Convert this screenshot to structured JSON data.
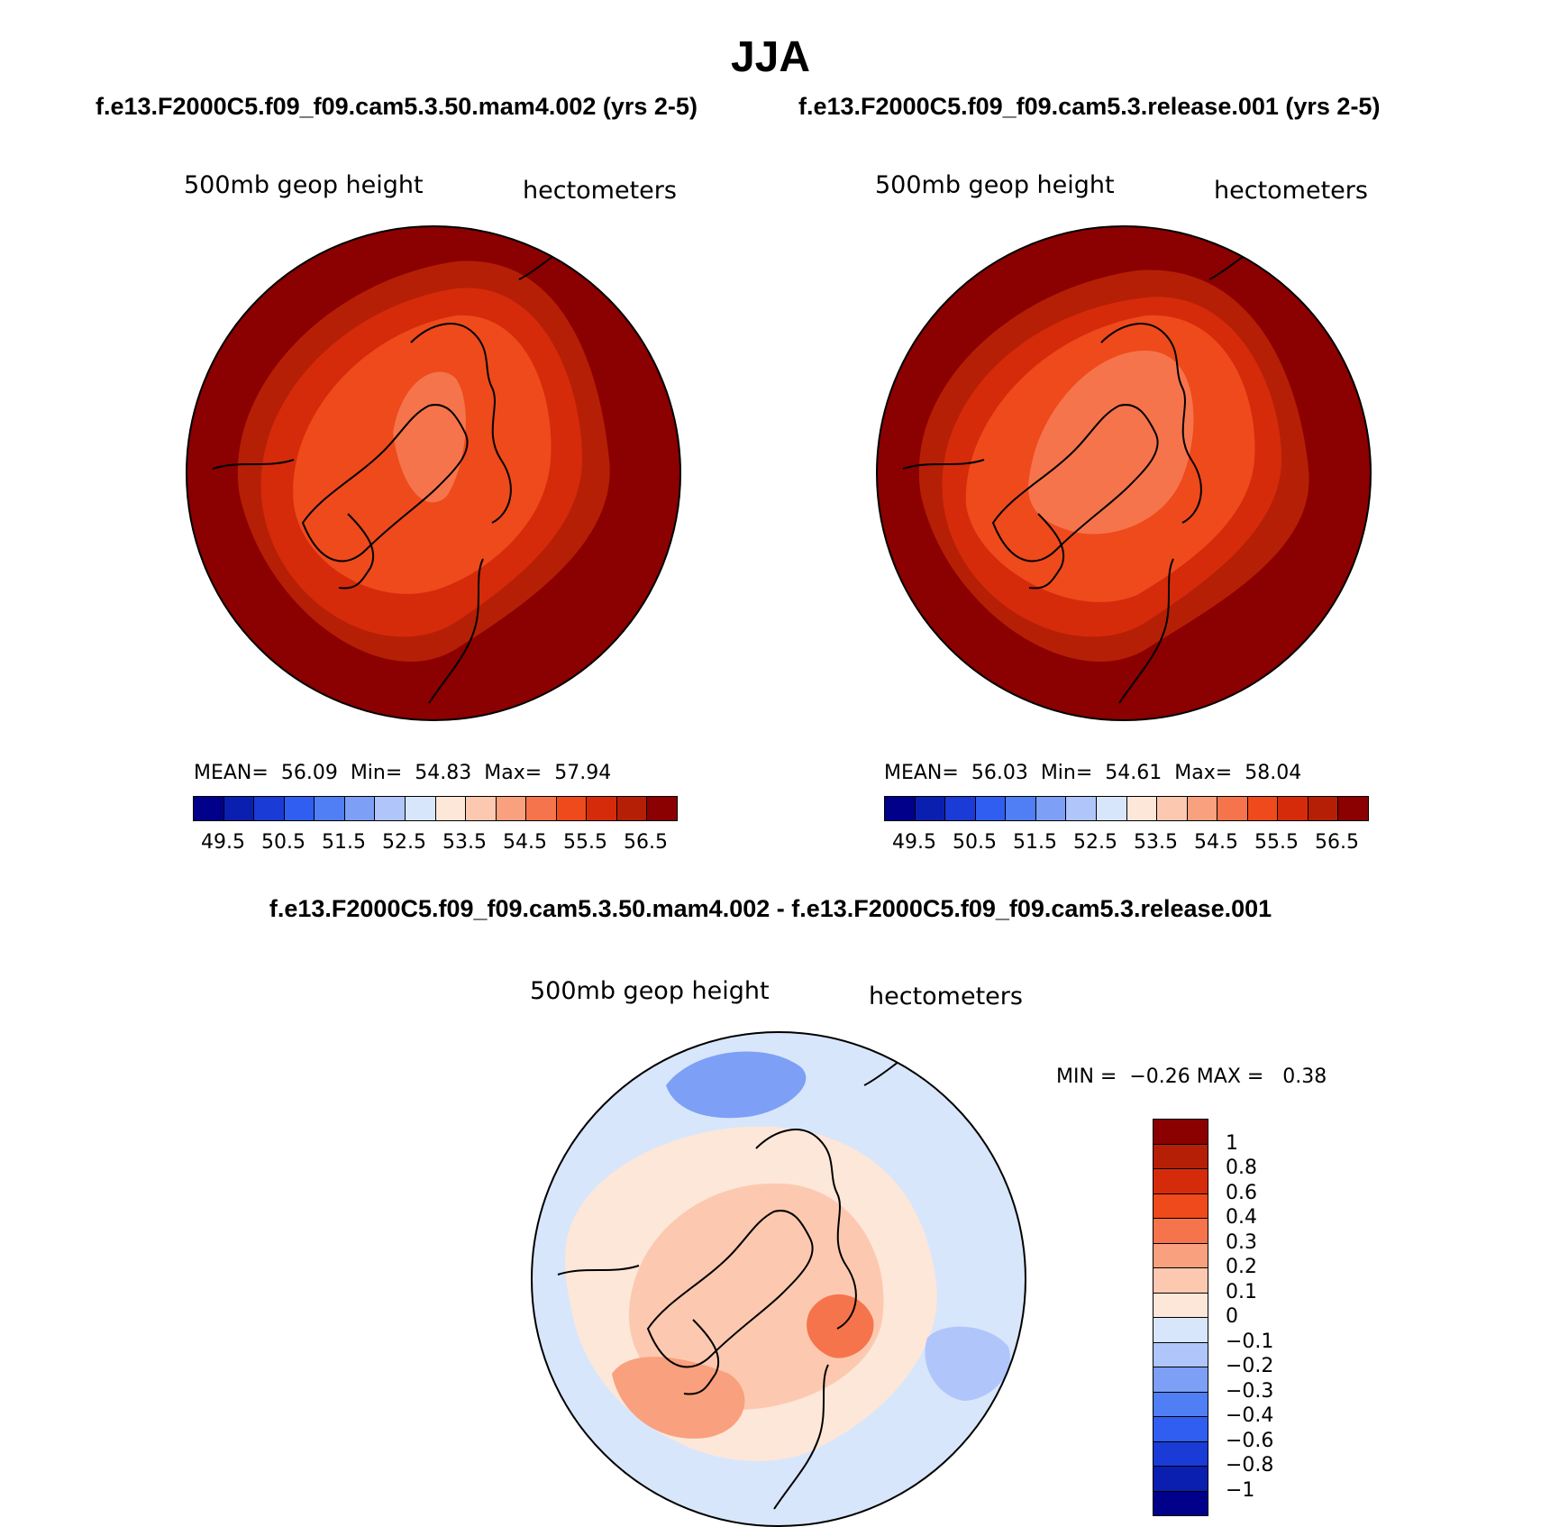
{
  "season": "JJA",
  "panels": [
    {
      "run_title": "f.e13.F2000C5.f09_f09.cam5.3.50.mam4.002 (yrs 2-5)",
      "variable": "500mb geop height",
      "units": "hectometers",
      "stats": {
        "mean_label": "MEAN=",
        "mean": "56.09",
        "min_label": "Min=",
        "min": "54.83",
        "max_label": "Max=",
        "max": "57.94"
      },
      "field_levels": {
        "outer": 56.5,
        "ring1": 56.0,
        "ring2": 55.5,
        "ring3": 55.0,
        "core": 54.5
      }
    },
    {
      "run_title": "f.e13.F2000C5.f09_f09.cam5.3.release.001 (yrs 2-5)",
      "variable": "500mb geop height",
      "units": "hectometers",
      "stats": {
        "mean_label": "MEAN=",
        "mean": "56.03",
        "min_label": "Min=",
        "min": "54.61",
        "max_label": "Max=",
        "max": "58.04"
      },
      "field_levels": {
        "outer": 56.5,
        "ring1": 56.0,
        "ring2": 55.5,
        "ring3": 55.0,
        "core": 54.5
      }
    }
  ],
  "abs_colorbar": {
    "colors": [
      "#00008b",
      "#0a1fb0",
      "#1a3bd6",
      "#2f5ef0",
      "#4f7ef5",
      "#7d9ff6",
      "#b0c6fb",
      "#d8e6fb",
      "#fde7d9",
      "#fcc9b0",
      "#f9a07e",
      "#f6744c",
      "#ee4a1c",
      "#d52b0a",
      "#b51f05",
      "#8b0000"
    ],
    "tick_labels": [
      "49.5",
      "50.5",
      "51.5",
      "52.5",
      "53.5",
      "54.5",
      "55.5",
      "56.5"
    ]
  },
  "difference": {
    "title": "f.e13.F2000C5.f09_f09.cam5.3.50.mam4.002 - f.e13.F2000C5.f09_f09.cam5.3.release.001",
    "variable": "500mb geop height",
    "units": "hectometers",
    "stats": {
      "min_label": "MIN =",
      "min": "−0.26",
      "max_label": "MAX =",
      "max": "0.38"
    },
    "colorbar": {
      "colors": [
        "#8b0000",
        "#b51f05",
        "#d52b0a",
        "#ee4a1c",
        "#f6744c",
        "#f9a07e",
        "#fcc9b0",
        "#fde7d9",
        "#d8e6fb",
        "#b0c6fb",
        "#7d9ff6",
        "#4f7ef5",
        "#2f5ef0",
        "#1a3bd6",
        "#0a1fb0",
        "#00008b"
      ],
      "tick_labels": [
        "1",
        "0.8",
        "0.6",
        "0.4",
        "0.3",
        "0.2",
        "0.1",
        "0",
        "−0.1",
        "−0.2",
        "−0.3",
        "−0.4",
        "−0.6",
        "−0.8",
        "−1"
      ]
    }
  }
}
